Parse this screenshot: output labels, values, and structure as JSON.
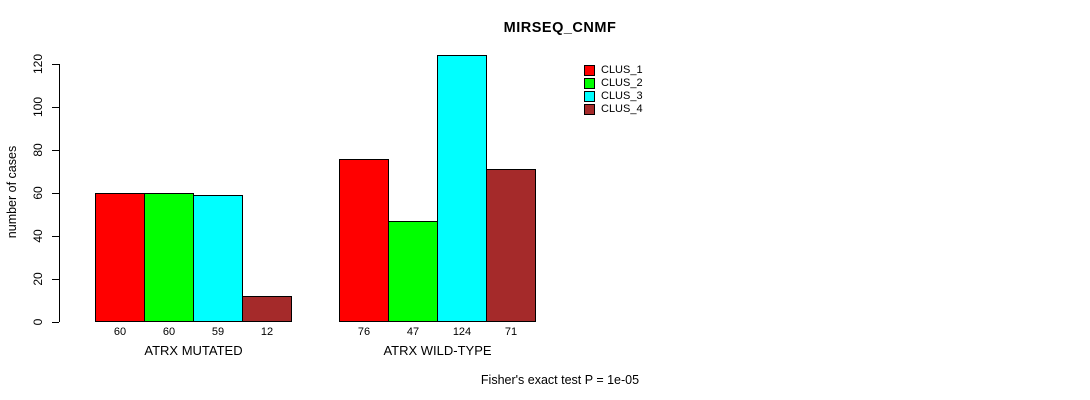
{
  "chart_data": {
    "type": "bar",
    "title": "MIRSEQ_CNMF",
    "xlabel": "",
    "ylabel": "number of cases",
    "categories": [
      "ATRX MUTATED",
      "ATRX WILD-TYPE"
    ],
    "series": [
      {
        "name": "CLUS_1",
        "color": "#FF0000",
        "values": [
          60,
          76
        ]
      },
      {
        "name": "CLUS_2",
        "color": "#00FF00",
        "values": [
          60,
          47
        ]
      },
      {
        "name": "CLUS_3",
        "color": "#00FFFF",
        "values": [
          59,
          124
        ]
      },
      {
        "name": "CLUS_4",
        "color": "#A52A2A",
        "values": [
          12,
          71
        ]
      }
    ],
    "bar_labels": [
      [
        60,
        60,
        59,
        12
      ],
      [
        76,
        47,
        124,
        71
      ]
    ],
    "yticks": [
      0,
      20,
      40,
      60,
      80,
      100,
      120
    ],
    "ylim": [
      0,
      130
    ],
    "grid": false,
    "legend_position": "top-right",
    "annotation": "Fisher's exact test P = 1e-05"
  }
}
